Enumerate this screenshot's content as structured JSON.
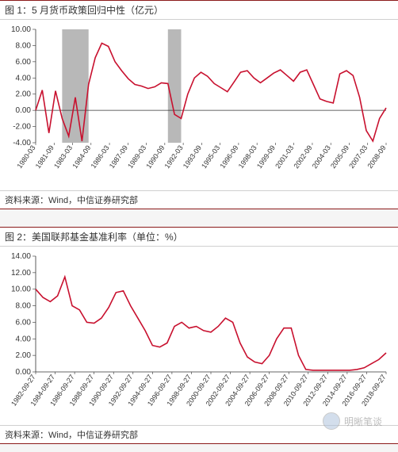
{
  "chart1": {
    "type": "line",
    "title": "图 1：5 月货币政策回归中性（亿元）",
    "source": "资料来源：Wind，中信证券研究部",
    "ylim": [
      -4.0,
      10.0
    ],
    "yticks": [
      -4.0,
      -2.0,
      0.0,
      2.0,
      4.0,
      6.0,
      8.0,
      10.0
    ],
    "xlabels": [
      "1980-03",
      "1981-09",
      "1983-03",
      "1984-09",
      "1986-03",
      "1987-09",
      "1989-03",
      "1990-09",
      "1992-03",
      "1993-09",
      "1995-03",
      "1996-09",
      "1998-03",
      "1999-09",
      "2001-03",
      "2002-09",
      "2004-03",
      "2005-09",
      "2007-03",
      "2008-09"
    ],
    "series": [
      {
        "color": "#c8102e",
        "values": [
          0.0,
          2.5,
          -2.8,
          2.4,
          -1.0,
          -3.2,
          1.6,
          -3.8,
          3.2,
          6.5,
          8.3,
          7.9,
          6.0,
          4.9,
          3.9,
          3.2,
          3.0,
          2.7,
          2.9,
          3.4,
          3.3,
          -0.5,
          -1.0,
          2.0,
          4.0,
          4.7,
          4.2,
          3.3,
          2.8,
          2.3,
          3.5,
          4.7,
          4.9,
          4.0,
          3.4,
          4.0,
          4.6,
          5.0,
          4.3,
          3.6,
          4.7,
          5.0,
          3.2,
          1.4,
          1.1,
          0.9,
          4.5,
          4.9,
          4.3,
          1.6,
          -2.5,
          -3.8,
          -1.0,
          0.3
        ]
      }
    ],
    "shaded_bands": [
      {
        "x_start_idx": 4,
        "x_end_idx": 8,
        "color": "#b8b8b8"
      },
      {
        "x_start_idx": 20,
        "x_end_idx": 22,
        "color": "#b8b8b8"
      }
    ],
    "background_color": "#ffffff",
    "axis_color": "#333333",
    "label_fontsize": 10,
    "title_fontsize": 12
  },
  "chart2": {
    "type": "line",
    "title": "图 2：美国联邦基金基准利率（单位：%）",
    "source": "资料来源：Wind，中信证券研究部",
    "ylim": [
      0.0,
      14.0
    ],
    "yticks": [
      0.0,
      2.0,
      4.0,
      6.0,
      8.0,
      10.0,
      12.0,
      14.0
    ],
    "xlabels": [
      "1982-09-27",
      "1984-09-27",
      "1986-09-27",
      "1988-09-27",
      "1990-09-27",
      "1992-09-27",
      "1994-09-27",
      "1996-09-27",
      "1998-09-27",
      "2000-09-27",
      "2002-09-27",
      "2004-09-27",
      "2006-09-27",
      "2008-09-27",
      "2010-09-27",
      "2012-09-27",
      "2014-09-27",
      "2016-09-27",
      "2018-09-27"
    ],
    "series": [
      {
        "color": "#c8102e",
        "values": [
          10.0,
          9.0,
          8.5,
          9.2,
          11.5,
          8.0,
          7.5,
          6.0,
          5.9,
          6.5,
          7.8,
          9.6,
          9.8,
          8.0,
          6.5,
          5.0,
          3.2,
          3.0,
          3.5,
          5.5,
          6.0,
          5.3,
          5.5,
          5.0,
          4.8,
          5.5,
          6.5,
          6.0,
          3.5,
          1.8,
          1.2,
          1.0,
          2.0,
          4.0,
          5.3,
          5.3,
          2.0,
          0.3,
          0.2,
          0.2,
          0.2,
          0.2,
          0.2,
          0.2,
          0.3,
          0.5,
          1.0,
          1.5,
          2.3
        ]
      }
    ],
    "shaded_bands": [],
    "background_color": "#ffffff",
    "axis_color": "#333333",
    "label_fontsize": 10,
    "title_fontsize": 12
  },
  "watermark": {
    "text": "明晰笔谈"
  }
}
